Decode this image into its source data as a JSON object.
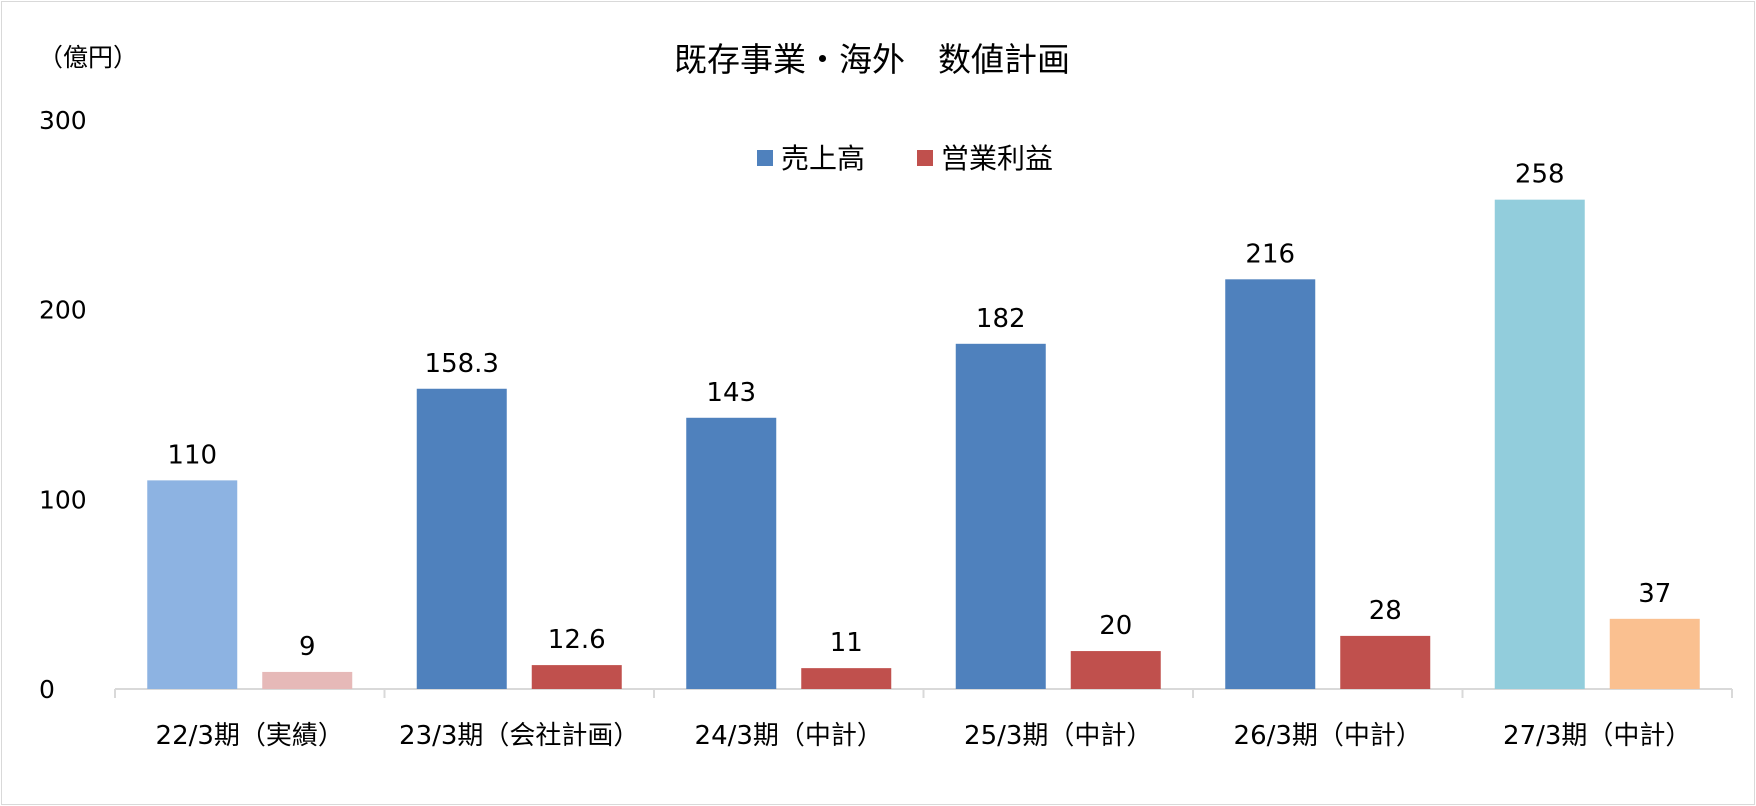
{
  "chart_data": {
    "type": "bar",
    "title": "既存事業・海外　数値計画",
    "unit_label": "（億円）",
    "ylim": [
      0,
      300
    ],
    "yticks": [
      "0",
      "100",
      "200",
      "300"
    ],
    "grid": false,
    "legend_position": "top",
    "categories": [
      "22/3期（実績）",
      "23/3期（会社計画）",
      "24/3期（中計）",
      "25/3期（中計）",
      "26/3期（中計）",
      "27/3期（中計）"
    ],
    "series": [
      {
        "name": "売上高",
        "color": "#4f81bd",
        "values": [
          110,
          158.3,
          143,
          182,
          216,
          258
        ],
        "labels": [
          "110",
          "158.3",
          "143",
          "182",
          "216",
          "258"
        ],
        "point_colors": [
          "#8db3e2",
          "#4f81bd",
          "#4f81bd",
          "#4f81bd",
          "#4f81bd",
          "#92cddc"
        ]
      },
      {
        "name": "営業利益",
        "color": "#c0504d",
        "values": [
          9,
          12.6,
          11,
          20,
          28,
          37
        ],
        "labels": [
          "9",
          "12.6",
          "11",
          "20",
          "28",
          "37"
        ],
        "point_colors": [
          "#e6b9b8",
          "#c0504d",
          "#c0504d",
          "#c0504d",
          "#c0504d",
          "#fac090"
        ]
      }
    ]
  }
}
